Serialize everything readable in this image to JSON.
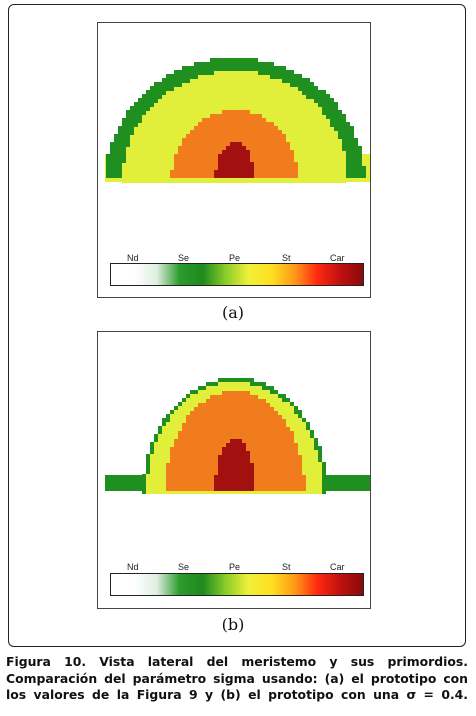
{
  "colors": {
    "Nd": "#ffffff",
    "Se": "#1f8f1f",
    "Pe": "#e2ef3a",
    "St": "#f07c1e",
    "Car": "#a31010"
  },
  "colorbar": {
    "labels": [
      "Nd",
      "Se",
      "Pe",
      "St",
      "Car"
    ],
    "gradient": [
      "#ffffff",
      "#ffffff",
      "#dfeee0",
      "#2c9a2c",
      "#1e8a1e",
      "#8acc2a",
      "#f0f03a",
      "#ffe020",
      "#ff9a18",
      "#ff2a10",
      "#c01010",
      "#8a0a0a"
    ]
  },
  "figure_a": {
    "label": "(a)"
  },
  "figure_b": {
    "label": "(b)"
  },
  "caption": {
    "line1": "Figura 10. Vista lateral del meristemo y sus primordios.",
    "line2": "Comparación del parámetro sigma usando: (a) el prototipo con",
    "line3": "los valores de la Figura 9 y (b) el prototipo con una σ = 0.4."
  }
}
